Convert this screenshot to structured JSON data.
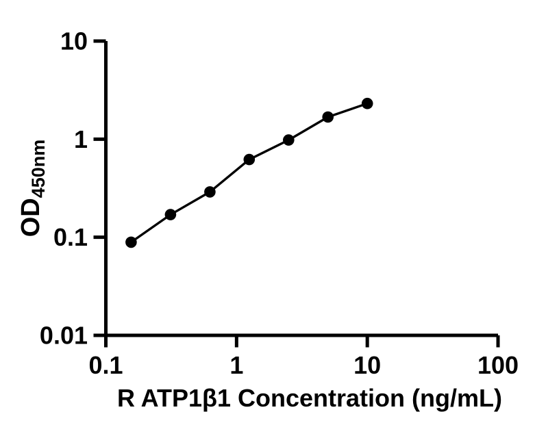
{
  "figure": {
    "background": "#ffffff",
    "ink": "#000000"
  },
  "chart_data": {
    "type": "line",
    "title": "",
    "xlabel": "R ATP1β1 Concentration (ng/mL)",
    "ylabel_main": "OD",
    "ylabel_sub": "450nm",
    "x_scale": "log",
    "y_scale": "log",
    "xlim": [
      0.1,
      100
    ],
    "ylim": [
      0.01,
      10
    ],
    "x_ticks": [
      {
        "value": 0.1,
        "label": "0.1"
      },
      {
        "value": 1,
        "label": "1"
      },
      {
        "value": 10,
        "label": "10"
      },
      {
        "value": 100,
        "label": "100"
      }
    ],
    "y_ticks": [
      {
        "value": 0.01,
        "label": "0.01"
      },
      {
        "value": 0.1,
        "label": "0.1"
      },
      {
        "value": 1,
        "label": "1"
      },
      {
        "value": 10,
        "label": "10"
      }
    ],
    "grid": false,
    "legend": false,
    "series": [
      {
        "marker": "filled-circle",
        "line": "solid",
        "color": "#000000",
        "points": [
          {
            "x": 0.156,
            "y": 0.089
          },
          {
            "x": 0.3125,
            "y": 0.17
          },
          {
            "x": 0.625,
            "y": 0.29
          },
          {
            "x": 1.25,
            "y": 0.62
          },
          {
            "x": 2.5,
            "y": 0.98
          },
          {
            "x": 5,
            "y": 1.68
          },
          {
            "x": 10,
            "y": 2.31
          }
        ]
      }
    ]
  }
}
